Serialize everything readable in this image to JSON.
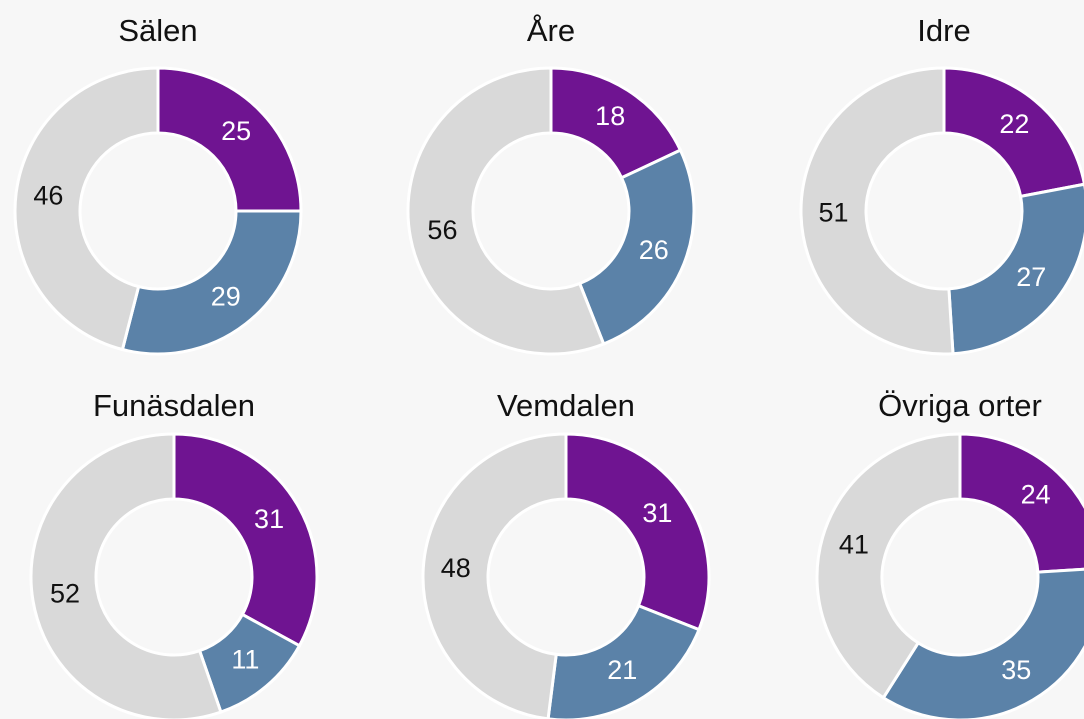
{
  "chart_data": [
    {
      "type": "pie",
      "donut": true,
      "title": "Sälen",
      "values": [
        25,
        29,
        46
      ],
      "colors": [
        "#6f1491",
        "#5b82a8",
        "#d9d9d9"
      ]
    },
    {
      "type": "pie",
      "donut": true,
      "title": "Åre",
      "values": [
        18,
        26,
        56
      ],
      "colors": [
        "#6f1491",
        "#5b82a8",
        "#d9d9d9"
      ]
    },
    {
      "type": "pie",
      "donut": true,
      "title": "Idre",
      "values": [
        22,
        27,
        51
      ],
      "colors": [
        "#6f1491",
        "#5b82a8",
        "#d9d9d9"
      ]
    },
    {
      "type": "pie",
      "donut": true,
      "title": "Funäsdalen",
      "values": [
        31,
        11,
        52
      ],
      "colors": [
        "#6f1491",
        "#5b82a8",
        "#d9d9d9"
      ]
    },
    {
      "type": "pie",
      "donut": true,
      "title": "Vemdalen",
      "values": [
        31,
        21,
        48
      ],
      "colors": [
        "#6f1491",
        "#5b82a8",
        "#d9d9d9"
      ]
    },
    {
      "type": "pie",
      "donut": true,
      "title": "Övriga orter",
      "values": [
        24,
        35,
        41
      ],
      "colors": [
        "#6f1491",
        "#5b82a8",
        "#d9d9d9"
      ]
    }
  ]
}
